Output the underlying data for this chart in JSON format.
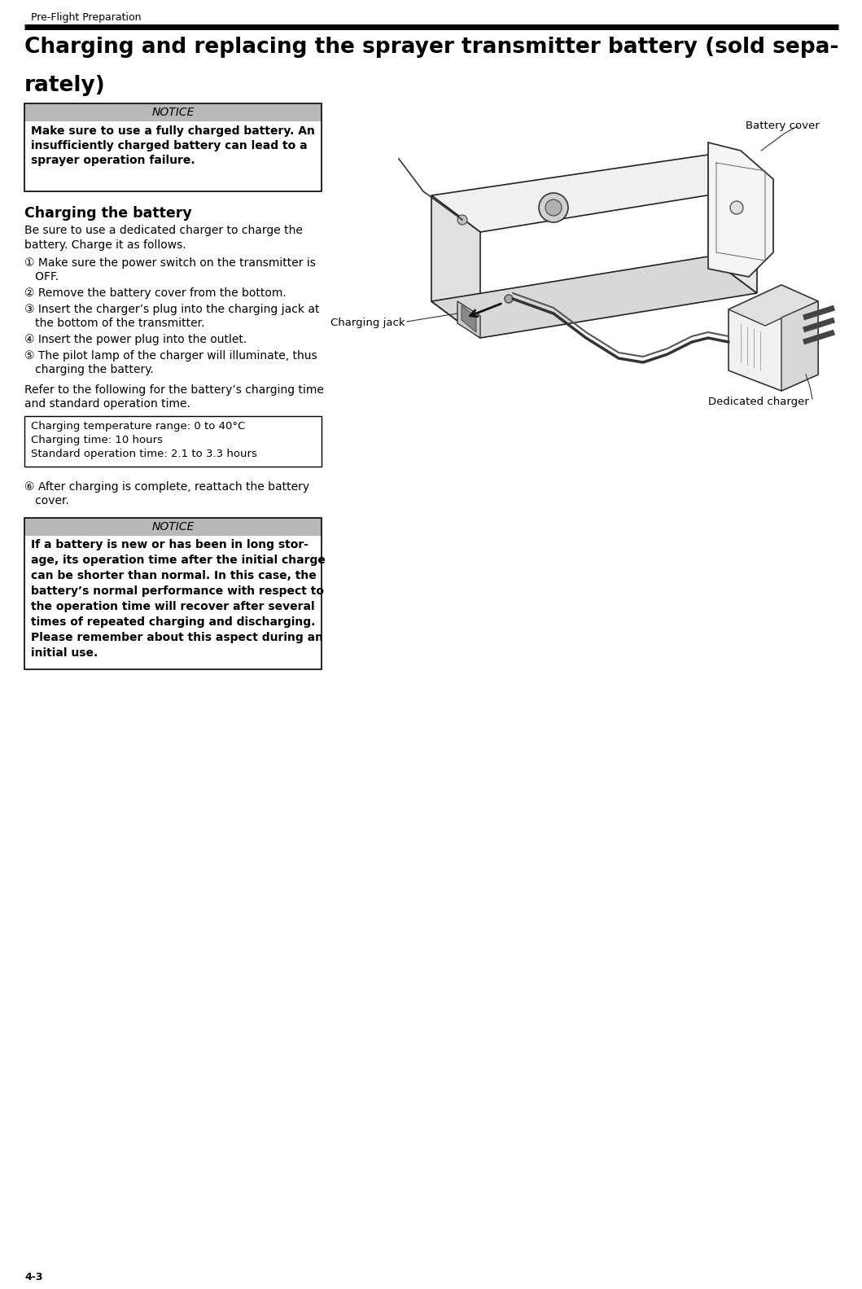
{
  "page_header": "Pre-Flight Preparation",
  "section_title_line1": "Charging and replacing the sprayer transmitter battery (sold sepa-",
  "section_title_line2": "rately)",
  "notice1_header": "NOTICE",
  "notice1_body_line1": "Make sure to use a fully charged battery. An",
  "notice1_body_line2": "insufficiently charged battery can lead to a",
  "notice1_body_line3": "sprayer operation failure.",
  "subsection_title": "Charging the battery",
  "intro_line1": "Be sure to use a dedicated charger to charge the",
  "intro_line2": "battery. Charge it as follows.",
  "step1_line1": "① Make sure the power switch on the transmitter is",
  "step1_line2": "   OFF.",
  "step2": "② Remove the battery cover from the bottom.",
  "step3_line1": "③ Insert the charger’s plug into the charging jack at",
  "step3_line2": "   the bottom of the transmitter.",
  "step4": "④ Insert the power plug into the outlet.",
  "step5_line1": "⑤ The pilot lamp of the charger will illuminate, thus",
  "step5_line2": "   charging the battery.",
  "refer_line1": "Refer to the following for the battery’s charging time",
  "refer_line2": "and standard operation time.",
  "spec1": "Charging temperature range: 0 to 40°C",
  "spec2": "Charging time: 10 hours",
  "spec3": "Standard operation time: 2.1 to 3.3 hours",
  "step6_line1": "⑥ After charging is complete, reattach the battery",
  "step6_line2": "   cover.",
  "notice2_header": "NOTICE",
  "notice2_line1": "If a battery is new or has been in long stor-",
  "notice2_line2": "age, its operation time after the initial charge",
  "notice2_line3": "can be shorter than normal. In this case, the",
  "notice2_line4": "battery’s normal performance with respect to",
  "notice2_line5": "the operation time will recover after several",
  "notice2_line6": "times of repeated charging and discharging.",
  "notice2_line7": "Please remember about this aspect during an",
  "notice2_line8": "initial use.",
  "label_battery_cover": "Battery cover",
  "label_charging_jack": "Charging jack",
  "label_dedicated_charger": "Dedicated charger",
  "footer": "4-3",
  "bg_color": "#ffffff",
  "text_color": "#000000",
  "notice_header_bg": "#b8b8b8",
  "notice_border": "#000000"
}
